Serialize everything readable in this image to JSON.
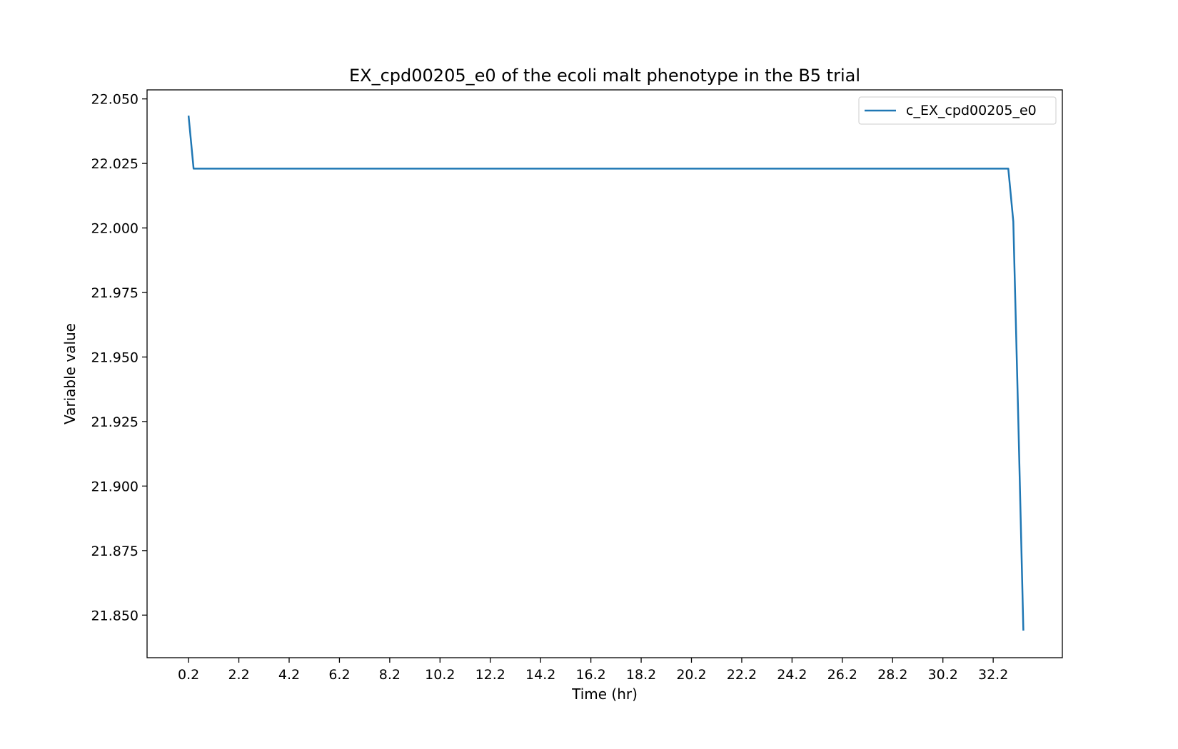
{
  "chart_data": {
    "type": "line",
    "title": "EX_cpd00205_e0 of the ecoli malt phenotype in the B5 trial",
    "xlabel": "Time (hr)",
    "ylabel": "Variable value",
    "xlim": [
      -1.45,
      34.95
    ],
    "ylim": [
      21.8335,
      22.0535
    ],
    "xticks": [
      0.2,
      2.2,
      4.2,
      6.2,
      8.2,
      10.2,
      12.2,
      14.2,
      16.2,
      18.2,
      20.2,
      22.2,
      24.2,
      26.2,
      28.2,
      30.2,
      32.2
    ],
    "xtick_labels": [
      "0.2",
      "2.2",
      "4.2",
      "6.2",
      "8.2",
      "10.2",
      "12.2",
      "14.2",
      "16.2",
      "18.2",
      "20.2",
      "22.2",
      "24.2",
      "26.2",
      "28.2",
      "30.2",
      "32.2"
    ],
    "yticks": [
      21.85,
      21.875,
      21.9,
      21.925,
      21.95,
      21.975,
      22.0,
      22.025,
      22.05
    ],
    "ytick_labels": [
      "21.850",
      "21.875",
      "21.900",
      "21.925",
      "21.950",
      "21.975",
      "22.000",
      "22.025",
      "22.050"
    ],
    "grid": false,
    "legend_position": "top-right",
    "series": [
      {
        "name": "c_EX_cpd00205_e0",
        "color": "#1f77b4",
        "x": [
          0.2,
          0.4,
          32.8,
          33.0,
          33.2,
          33.4
        ],
        "y": [
          22.0435,
          22.023,
          22.023,
          22.0025,
          21.925,
          21.844
        ]
      }
    ]
  }
}
